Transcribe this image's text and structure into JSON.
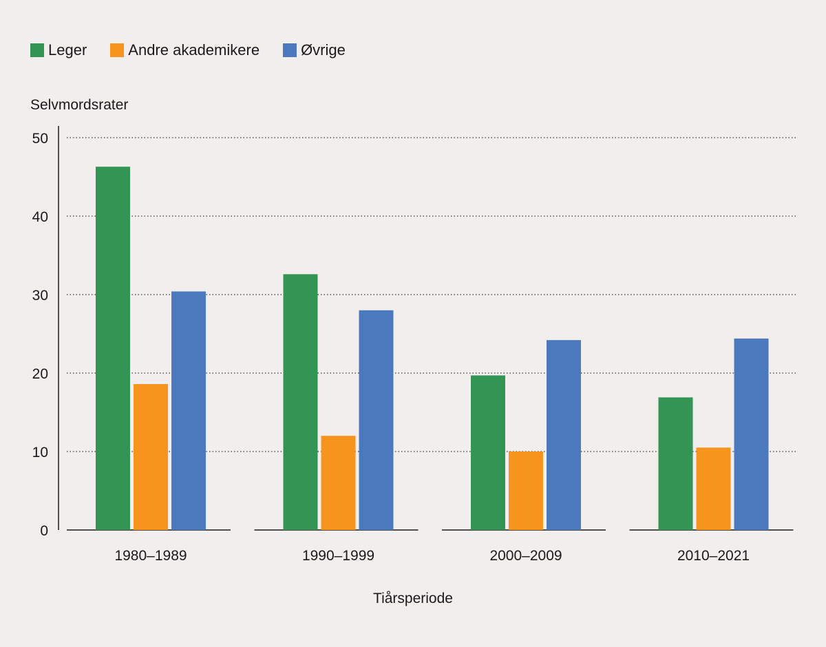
{
  "chart_data": {
    "type": "bar",
    "title": "",
    "xlabel": "Tiårsperiode",
    "ylabel": "Selvmordsrater",
    "ylim": [
      0,
      50
    ],
    "yticks": [
      0,
      10,
      20,
      30,
      40,
      50
    ],
    "grid": "horizontal dotted",
    "legend_position": "top-left",
    "categories": [
      "1980–1989",
      "1990–1999",
      "2000–2009",
      "2010–2021"
    ],
    "series": [
      {
        "name": "Leger",
        "color": "#339553",
        "values": [
          46.3,
          32.6,
          19.7,
          16.9
        ]
      },
      {
        "name": "Andre akademikere",
        "color": "#f7941e",
        "values": [
          18.6,
          12.0,
          10.0,
          10.5
        ]
      },
      {
        "name": "Øvrige",
        "color": "#4a79be",
        "values": [
          30.4,
          28.0,
          24.2,
          24.4
        ]
      }
    ]
  }
}
